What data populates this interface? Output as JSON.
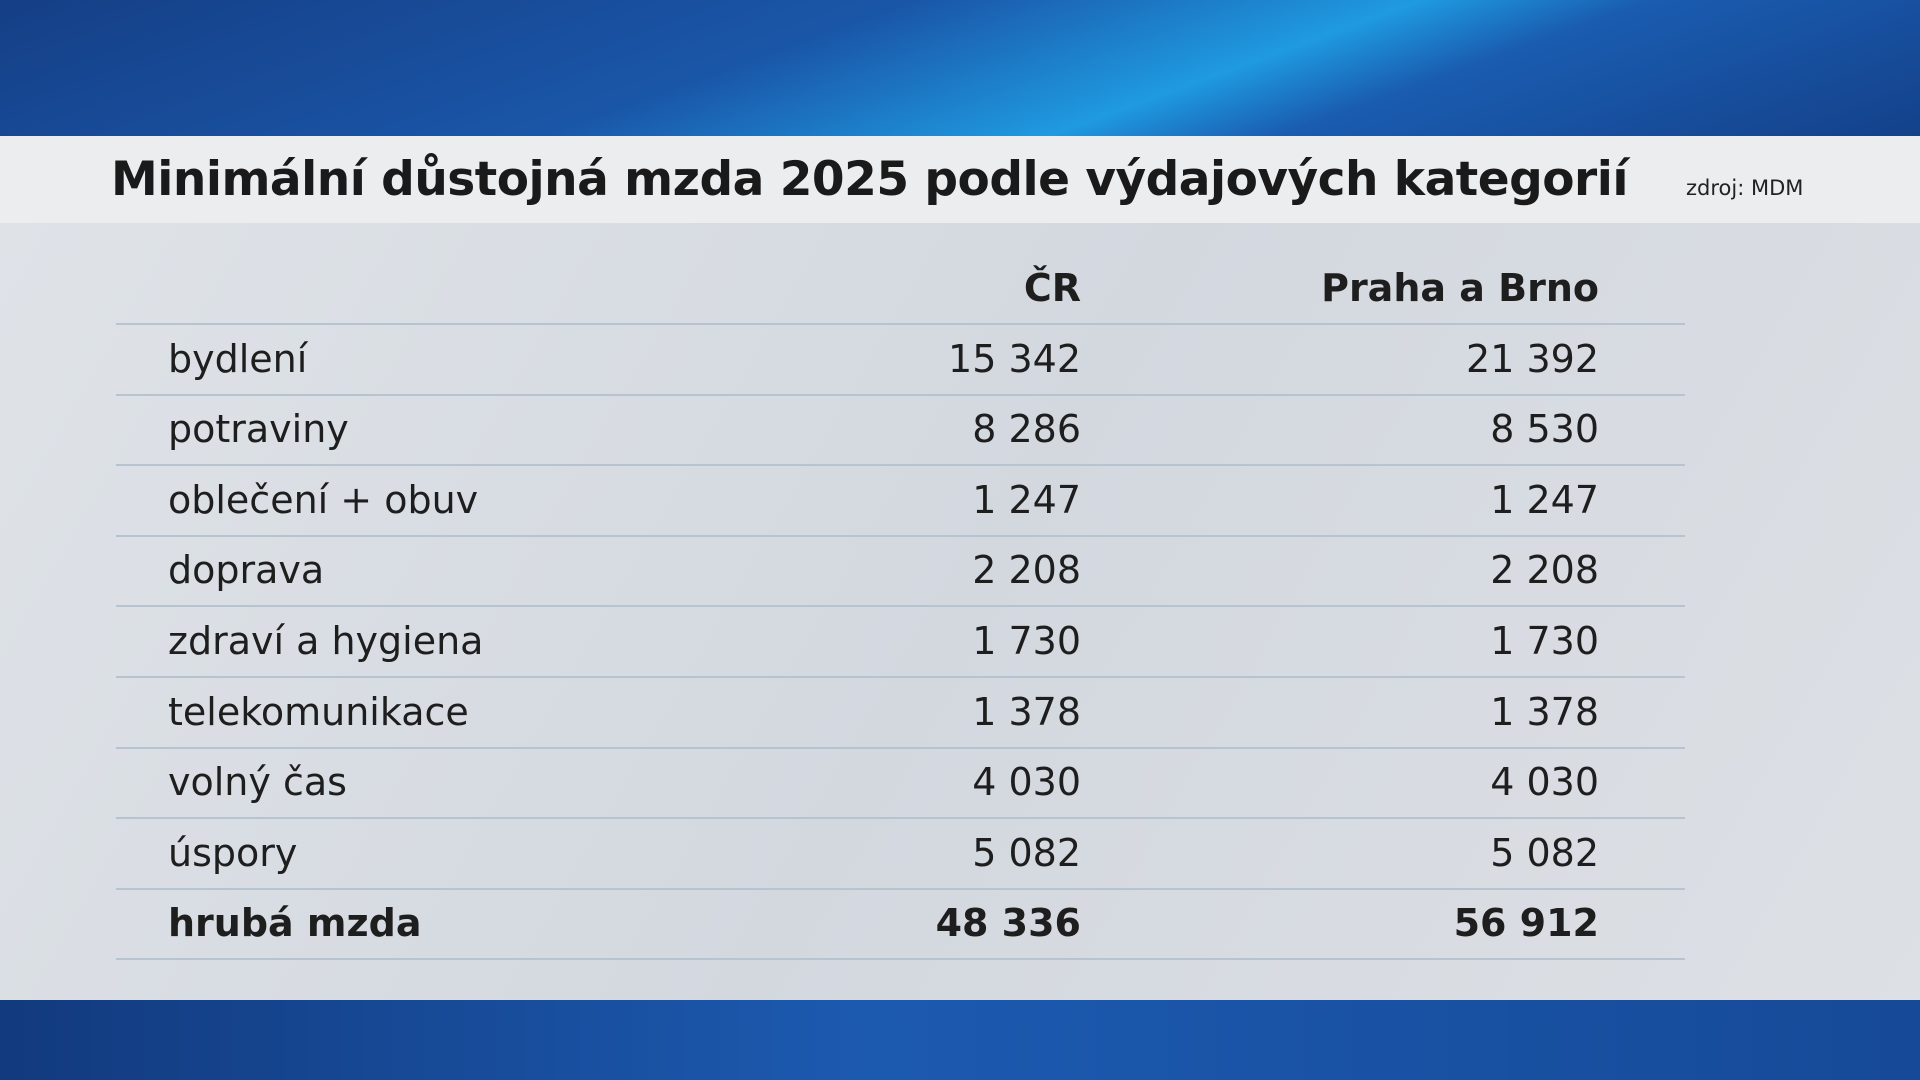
{
  "header": {
    "title": "Minimální důstojná mzda 2025 podle výdajových kategorií",
    "source": "zdroj: MDM"
  },
  "table": {
    "columns": [
      "ČR",
      "Praha a Brno"
    ],
    "rows": [
      [
        "bydlení",
        "15 342",
        "21 392"
      ],
      [
        "potraviny",
        "8 286",
        "8 530"
      ],
      [
        "oblečení + obuv",
        "1 247",
        "1 247"
      ],
      [
        "doprava",
        "2 208",
        "2 208"
      ],
      [
        "zdraví a hygiena",
        "1 730",
        "1 730"
      ],
      [
        "telekomunikace",
        "1 378",
        "1 378"
      ],
      [
        "volný čas",
        "4 030",
        "4 030"
      ],
      [
        "úspory",
        "5 082",
        "5 082"
      ],
      [
        "hrubá mzda",
        "48 336",
        "56 912"
      ]
    ]
  }
}
